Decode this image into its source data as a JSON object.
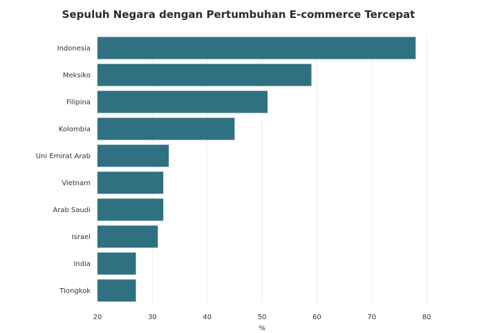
{
  "chart_data": {
    "type": "bar",
    "orientation": "horizontal",
    "title": "Sepuluh Negara dengan Pertumbuhan E-commerce Tercepat",
    "xlabel": "%",
    "ylabel": "",
    "categories": [
      "Indonesia",
      "Meksiko",
      "Filipina",
      "Kolombia",
      "Uni Emirat Arab",
      "Vietnam",
      "Arab Saudi",
      "Israel",
      "India",
      "Tiongkok"
    ],
    "values": [
      78,
      59,
      51,
      45,
      33,
      32,
      32,
      31,
      27,
      27
    ],
    "xlim": [
      20,
      82
    ],
    "xticks": [
      20,
      30,
      40,
      50,
      60,
      70,
      80
    ],
    "grid": "vertical",
    "bar_color": "#2f7181"
  }
}
